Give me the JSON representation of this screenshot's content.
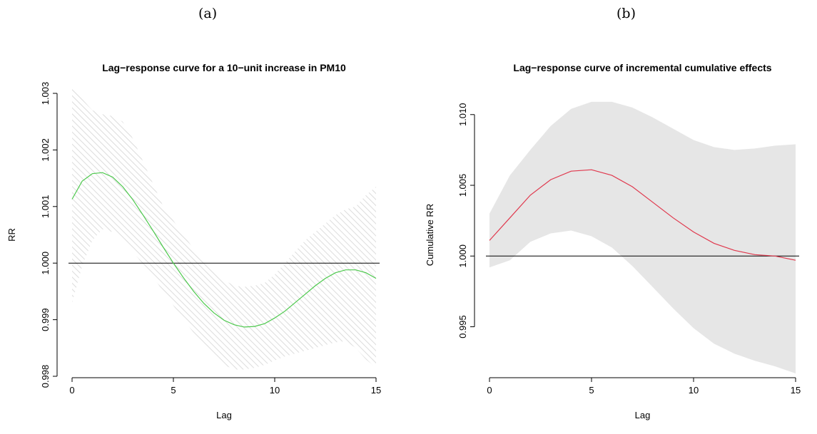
{
  "panels": {
    "a_label": "(a)",
    "b_label": "(b)"
  },
  "chart_data": [
    {
      "type": "line",
      "title": "Lag−response curve for a 10−unit increase in PM10",
      "xlabel": "Lag",
      "ylabel": "RR",
      "xlim": [
        0,
        15
      ],
      "ylim": [
        0.998,
        1.003
      ],
      "xticks": [
        0,
        5,
        10,
        15
      ],
      "yticks": [
        0.998,
        0.999,
        1.0,
        1.001,
        1.002,
        1.003
      ],
      "ytick_labels": [
        "0.998",
        "0.999",
        "1.000",
        "1.001",
        "1.002",
        "1.003"
      ],
      "reference_line": 1.0,
      "band_style": "hatched",
      "line_color": "#4cc94c",
      "band_color": "#dcdcdc",
      "x": [
        0,
        0.5,
        1,
        1.5,
        2,
        2.5,
        3,
        3.5,
        4,
        4.5,
        5,
        5.5,
        6,
        6.5,
        7,
        7.5,
        8,
        8.5,
        9,
        9.5,
        10,
        10.5,
        11,
        11.5,
        12,
        12.5,
        13,
        13.5,
        14,
        14.5,
        15
      ],
      "series": [
        {
          "values": [
            1.00113,
            1.00145,
            1.00158,
            1.0016,
            1.00152,
            1.00135,
            1.00112,
            1.00085,
            1.00057,
            1.00028,
            1.0,
            0.99974,
            0.9995,
            0.99929,
            0.99912,
            0.99899,
            0.99891,
            0.99887,
            0.99888,
            0.99893,
            0.99903,
            0.99915,
            0.9993,
            0.99945,
            0.9996,
            0.99973,
            0.99983,
            0.99988,
            0.99988,
            0.99983,
            0.99973
          ],
          "lower": [
            0.9993,
            0.99995,
            1.0004,
            1.0006,
            1.00055,
            1.0004,
            1.0002,
            0.99998,
            0.99975,
            0.9995,
            0.99925,
            0.999,
            0.99877,
            0.99855,
            0.99835,
            0.9982,
            0.99812,
            0.99812,
            0.99815,
            0.9982,
            0.99828,
            0.99835,
            0.9984,
            0.99845,
            0.9985,
            0.99855,
            0.9986,
            0.99862,
            0.9985,
            0.9983,
            0.99815
          ],
          "upper": [
            1.0031,
            1.0029,
            1.0027,
            1.00263,
            1.0026,
            1.0025,
            1.0022,
            1.0018,
            1.0014,
            1.001,
            1.00075,
            1.0005,
            1.00025,
            1.0,
            0.99985,
            0.9997,
            0.9996,
            0.99958,
            0.9996,
            0.99965,
            0.9998,
            1.0,
            1.0002,
            1.0004,
            1.00055,
            1.0007,
            1.00085,
            1.00095,
            1.001,
            1.0012,
            1.00135
          ]
        }
      ]
    },
    {
      "type": "line",
      "title": "Lag−response curve of incremental cumulative effects",
      "xlabel": "Lag",
      "ylabel": "Cumulative RR",
      "xlim": [
        0,
        15
      ],
      "ylim": [
        0.9915,
        1.0115
      ],
      "xticks": [
        0,
        5,
        10,
        15
      ],
      "yticks": [
        0.995,
        1.0,
        1.005,
        1.01
      ],
      "ytick_labels": [
        "0.995",
        "1.000",
        "1.005",
        "1.010"
      ],
      "reference_line": 1.0,
      "band_style": "filled",
      "line_color": "#e0384d",
      "band_color": "#e6e6e6",
      "x": [
        0,
        1,
        2,
        3,
        4,
        5,
        6,
        7,
        8,
        9,
        10,
        11,
        12,
        13,
        14,
        15
      ],
      "series": [
        {
          "values": [
            1.0011,
            1.0027,
            1.0043,
            1.0054,
            1.006,
            1.0061,
            1.0057,
            1.0049,
            1.0038,
            1.0027,
            1.0017,
            1.0009,
            1.0004,
            1.0001,
            1.0,
            0.9997
          ],
          "lower": [
            0.9992,
            0.9997,
            1.001,
            1.0016,
            1.0018,
            1.0014,
            1.0006,
            0.9993,
            0.9978,
            0.9963,
            0.9949,
            0.9938,
            0.9931,
            0.9926,
            0.9922,
            0.9917
          ],
          "upper": [
            1.003,
            1.0057,
            1.0075,
            1.0092,
            1.0104,
            1.0109,
            1.0109,
            1.0105,
            1.0098,
            1.009,
            1.0082,
            1.0077,
            1.0075,
            1.0076,
            1.0078,
            1.0079
          ]
        }
      ]
    }
  ]
}
